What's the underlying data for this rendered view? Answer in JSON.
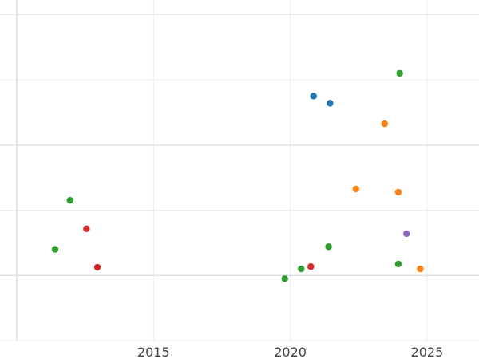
{
  "chart_data": {
    "type": "scatter",
    "title": "",
    "xlabel": "",
    "ylabel": "",
    "xlim": [
      2010.0,
      2026.9
    ],
    "ylim": [
      0,
      10.2
    ],
    "x_ticks": [
      2015,
      2020,
      2025
    ],
    "x_tick_labels": [
      "2015",
      "2020",
      "2025"
    ],
    "y_gridlines": [
      0,
      2,
      4,
      6,
      8,
      10
    ],
    "grid": true,
    "legend": "none",
    "series": [
      {
        "color": "#1f77b4",
        "points": [
          {
            "x": 2020.85,
            "y": 7.5
          },
          {
            "x": 2021.45,
            "y": 7.28
          }
        ]
      },
      {
        "color": "#ff7f0e",
        "points": [
          {
            "x": 2023.45,
            "y": 6.65
          },
          {
            "x": 2022.4,
            "y": 4.65
          },
          {
            "x": 2023.95,
            "y": 4.55
          },
          {
            "x": 2024.75,
            "y": 2.2
          }
        ]
      },
      {
        "color": "#2ca02c",
        "points": [
          {
            "x": 2024.0,
            "y": 8.2
          },
          {
            "x": 2011.95,
            "y": 4.3
          },
          {
            "x": 2011.4,
            "y": 2.8
          },
          {
            "x": 2021.4,
            "y": 2.88
          },
          {
            "x": 2023.95,
            "y": 2.35
          },
          {
            "x": 2020.4,
            "y": 2.2
          },
          {
            "x": 2019.8,
            "y": 1.9
          }
        ]
      },
      {
        "color": "#d62728",
        "points": [
          {
            "x": 2012.55,
            "y": 3.43
          },
          {
            "x": 2012.95,
            "y": 2.25
          },
          {
            "x": 2020.75,
            "y": 2.27
          }
        ]
      },
      {
        "color": "#9467bd",
        "points": [
          {
            "x": 2024.25,
            "y": 3.28
          }
        ]
      }
    ]
  }
}
